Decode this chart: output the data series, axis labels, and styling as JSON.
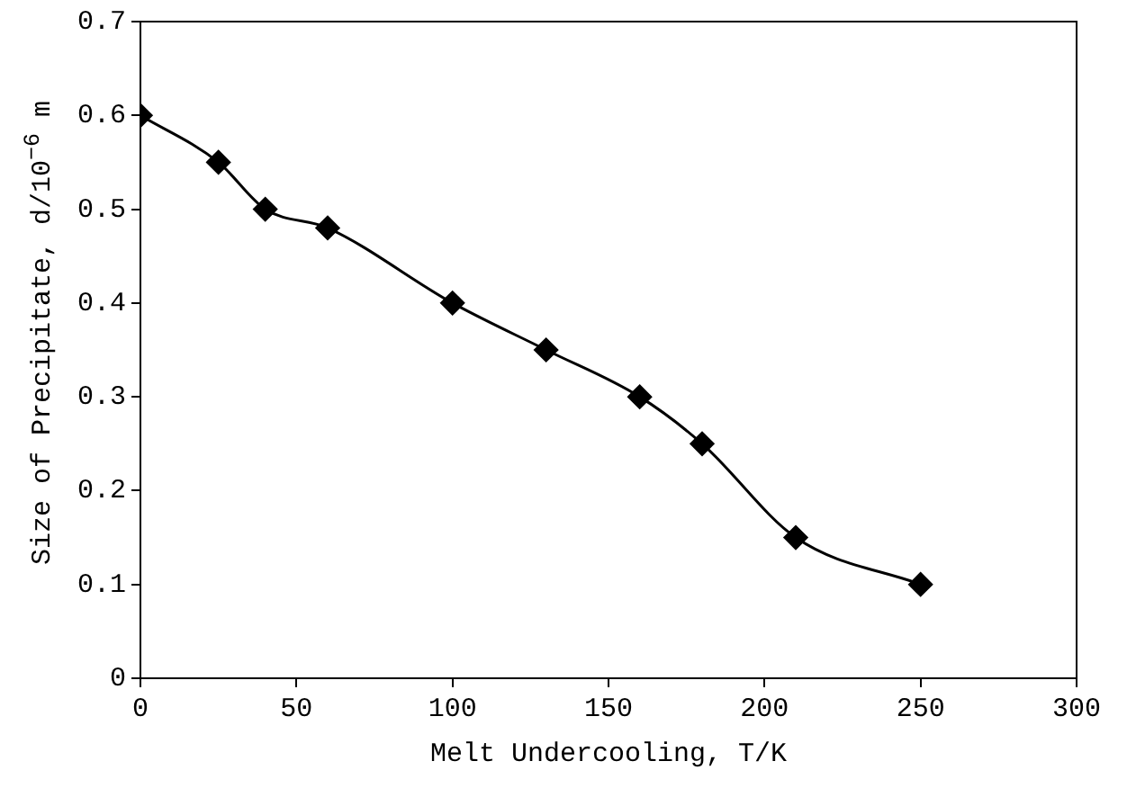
{
  "chart_data": {
    "type": "line",
    "xlabel": "Melt Undercooling, T/K",
    "ylabel": "Size of Precipitate, d/10$^{−6}$ m",
    "x": [
      0,
      25,
      40,
      60,
      100,
      130,
      160,
      180,
      210,
      250
    ],
    "series": [
      {
        "color": "#000000",
        "values": [
          0.6,
          0.55,
          0.5,
          0.48,
          0.4,
          0.35,
          0.3,
          0.25,
          0.15,
          0.1
        ]
      }
    ],
    "xlim": [
      0,
      300
    ],
    "xticks": [
      0,
      50,
      100,
      150,
      200,
      250,
      300
    ],
    "ylim": [
      0,
      0.7
    ],
    "yticks": [
      0,
      0.1,
      0.2,
      0.3,
      0.4,
      0.5,
      0.6,
      0.7
    ],
    "grid": false,
    "legend": false,
    "marker": "diamond",
    "line_style": "solid"
  }
}
